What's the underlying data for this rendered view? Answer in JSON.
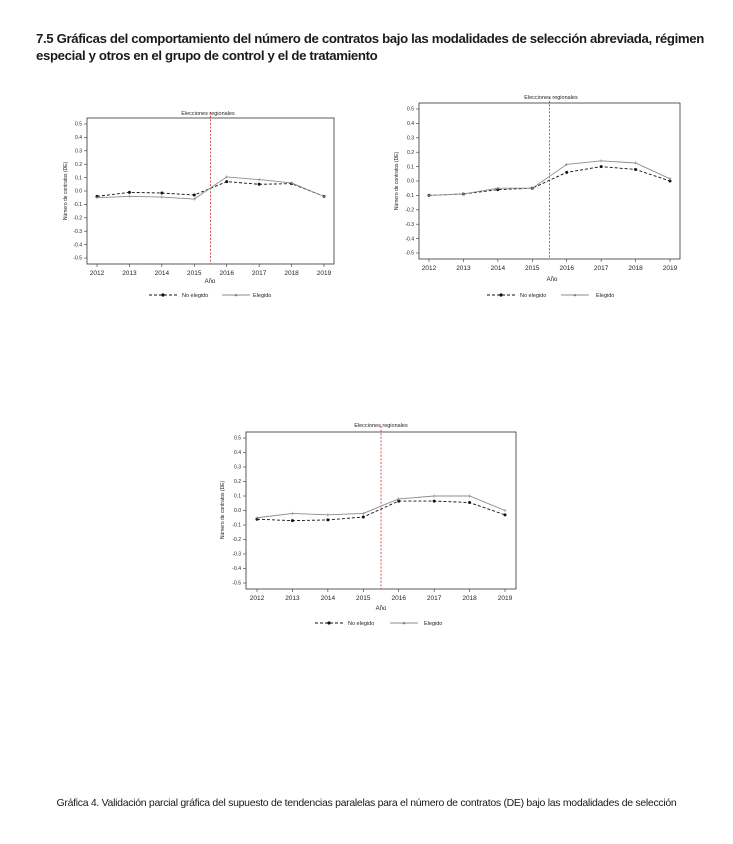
{
  "heading": {
    "line1": "7.5 Gráficas del comportamiento del número de contratos bajo las modalidades de selección abreviada, régimen",
    "line2": "especial y otros en el grupo de control y el de tratamiento"
  },
  "caption": "Gráfica 4. Validación parcial gráfica del supuesto de tendencias paralelas para el número de contratos (DE) bajo las modalidades de selección",
  "colors": {
    "no_elegido": "#111111",
    "elegido": "#8c8c8c",
    "event_line": "#d62728",
    "frame": "#333333"
  },
  "chart_data": [
    {
      "type": "line",
      "title": "Elecciones regionales",
      "xlabel": "Año",
      "ylabel": "Número de contratos (DE)",
      "x": [
        2012,
        2013,
        2014,
        2015,
        2016,
        2017,
        2018,
        2019
      ],
      "x_ticks": [
        "2012",
        "2013",
        "2014",
        "2015",
        "2016",
        "2017",
        "2018",
        "2019"
      ],
      "y_ticks": [
        "0.5",
        "0.4",
        "0.3",
        "0.2",
        "0.1",
        "0.0",
        "-0.1",
        "-0.2",
        "-0.3",
        "-0.4",
        "-0.5"
      ],
      "ylim": [
        -0.5,
        0.5
      ],
      "event_x": 2015.5,
      "grid": false,
      "legend_position": "bottom",
      "series": [
        {
          "name": "No elegido",
          "style": "dashed",
          "marker": "dot",
          "values": [
            -0.04,
            -0.01,
            -0.015,
            -0.03,
            0.07,
            0.05,
            0.055,
            -0.04
          ]
        },
        {
          "name": "Elegido",
          "style": "solid",
          "marker": "plus",
          "values": [
            -0.05,
            -0.04,
            -0.045,
            -0.06,
            0.105,
            0.085,
            0.06,
            -0.04
          ]
        }
      ]
    },
    {
      "type": "line",
      "title": "Elecciones regionales",
      "xlabel": "Año",
      "ylabel": "Número de contratos (DE)",
      "x": [
        2012,
        2013,
        2014,
        2015,
        2016,
        2017,
        2018,
        2019
      ],
      "x_ticks": [
        "2012",
        "2013",
        "2014",
        "2015",
        "2016",
        "2017",
        "2018",
        "2019"
      ],
      "y_ticks": [
        "0.5",
        "0.4",
        "0.3",
        "0.2",
        "0.1",
        "0.0",
        "-0.1",
        "-0.2",
        "-0.3",
        "-0.4",
        "-0.5"
      ],
      "ylim": [
        -0.5,
        0.5
      ],
      "event_x": 2015.5,
      "grid": false,
      "legend_position": "bottom",
      "series": [
        {
          "name": "No elegido",
          "style": "dashed",
          "marker": "dot",
          "values": [
            -0.1,
            -0.09,
            -0.06,
            -0.05,
            0.06,
            0.1,
            0.08,
            0.0
          ]
        },
        {
          "name": "Elegido",
          "style": "solid",
          "marker": "plus",
          "values": [
            -0.1,
            -0.09,
            -0.05,
            -0.05,
            0.115,
            0.14,
            0.125,
            0.015
          ]
        }
      ]
    },
    {
      "type": "line",
      "title": "Elecciones regionales",
      "xlabel": "Año",
      "ylabel": "Número de contratos (DE)",
      "x": [
        2012,
        2013,
        2014,
        2015,
        2016,
        2017,
        2018,
        2019
      ],
      "x_ticks": [
        "2012",
        "2013",
        "2014",
        "2015",
        "2016",
        "2017",
        "2018",
        "2019"
      ],
      "y_ticks": [
        "0.5",
        "0.4",
        "0.3",
        "0.2",
        "0.1",
        "0.0",
        "-0.1",
        "-0.2",
        "-0.3",
        "-0.4",
        "-0.5"
      ],
      "ylim": [
        -0.5,
        0.5
      ],
      "event_x": 2015.5,
      "grid": false,
      "legend_position": "bottom",
      "series": [
        {
          "name": "No elegido",
          "style": "dashed",
          "marker": "dot",
          "values": [
            -0.06,
            -0.07,
            -0.065,
            -0.045,
            0.065,
            0.065,
            0.055,
            -0.03
          ]
        },
        {
          "name": "Elegido",
          "style": "solid",
          "marker": "plus",
          "values": [
            -0.05,
            -0.02,
            -0.03,
            -0.02,
            0.08,
            0.1,
            0.1,
            0.0
          ]
        }
      ]
    }
  ]
}
